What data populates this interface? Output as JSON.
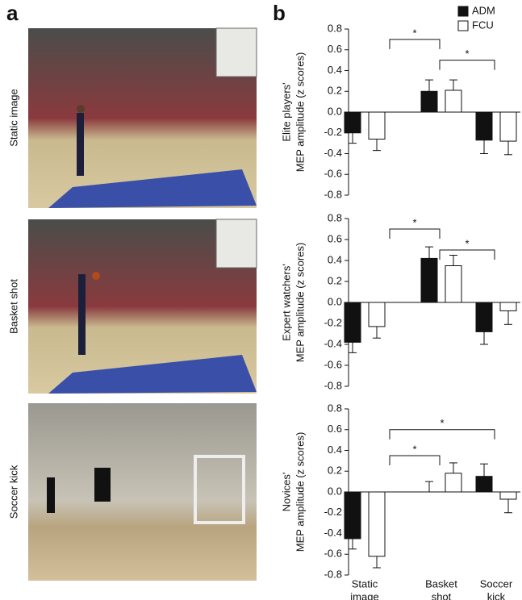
{
  "panel_labels": [
    "a",
    "b"
  ],
  "photo_labels": [
    "Static image",
    "Basket shot",
    "Soccer kick"
  ],
  "chart_data": [
    {
      "type": "bar",
      "ylabel": [
        "Elite players'",
        "MEP amplitude (z scores)"
      ],
      "series": [
        {
          "name": "ADM",
          "color": "#111111",
          "values": [
            -0.2,
            0.2,
            -0.27
          ],
          "errors": [
            0.1,
            0.11,
            0.13
          ]
        },
        {
          "name": "FCU",
          "color": "#ffffff",
          "values": [
            -0.26,
            0.21,
            -0.28
          ],
          "errors": [
            0.11,
            0.1,
            0.13
          ]
        }
      ],
      "annotations": [
        {
          "from": 0,
          "to": 1,
          "label": "*"
        },
        {
          "from": 1,
          "to": 2,
          "label": "*"
        }
      ],
      "ylim": [
        -0.8,
        0.8
      ],
      "yticks": [
        -0.8,
        -0.6,
        -0.4,
        -0.2,
        {
          "value": 0,
          "label": "0.0"
        },
        0.2,
        0.4,
        0.6,
        0.8
      ]
    },
    {
      "type": "bar",
      "ylabel": [
        "Expert watchers'",
        "MEP amplitude (z scores)"
      ],
      "series": [
        {
          "color": "#111111",
          "values": [
            -0.38,
            0.42,
            -0.28
          ],
          "errors": [
            0.1,
            0.11,
            0.12
          ]
        },
        {
          "color": "#ffffff",
          "values": [
            -0.23,
            0.35,
            -0.08
          ],
          "errors": [
            0.11,
            0.1,
            0.13
          ]
        }
      ],
      "annotations": [
        {
          "from": 0,
          "to": 1,
          "label": "*"
        },
        {
          "from": 1,
          "to": 2,
          "label": "*"
        }
      ],
      "ylim": [
        -0.8,
        0.8
      ],
      "yticks": [
        -0.8,
        -0.6,
        -0.4,
        -0.2,
        {
          "value": 0,
          "label": "0.0"
        },
        0.2,
        0.4,
        0.6,
        0.8
      ]
    },
    {
      "type": "bar",
      "ylabel": [
        "Novices'",
        "MEP amplitude (z scores)"
      ],
      "categories": [
        [
          "Static",
          "image"
        ],
        [
          "Basket",
          "shot"
        ],
        [
          "Soccer",
          "kick"
        ]
      ],
      "series": [
        {
          "color": "#111111",
          "values": [
            -0.45,
            0.0,
            0.15
          ],
          "errors": [
            0.1,
            0.1,
            0.12
          ]
        },
        {
          "color": "#ffffff",
          "values": [
            -0.62,
            0.18,
            -0.07
          ],
          "errors": [
            0.11,
            0.1,
            0.13
          ]
        }
      ],
      "annotations": [
        {
          "from": 0,
          "to": 1,
          "label": "*"
        },
        {
          "from": 0,
          "to": 2,
          "label": "*"
        }
      ],
      "ylim": [
        -0.8,
        0.8
      ],
      "yticks": [
        -0.8,
        -0.6,
        -0.4,
        -0.2,
        {
          "value": 0,
          "label": "0.0"
        },
        0.2,
        0.4,
        0.6,
        0.8
      ]
    }
  ]
}
